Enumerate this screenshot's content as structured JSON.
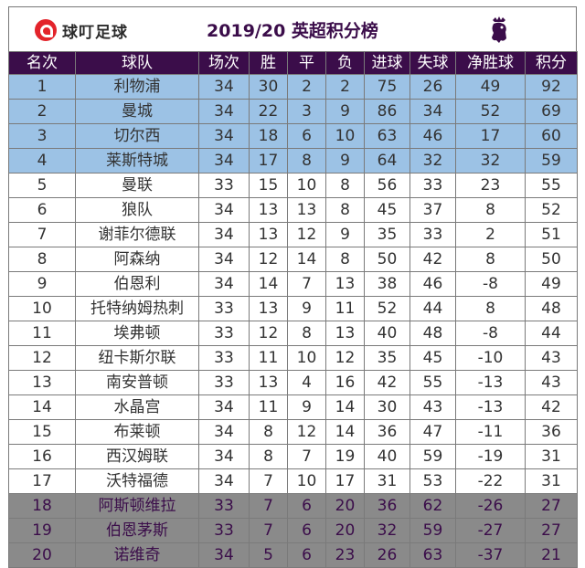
{
  "brand": {
    "name": "球叮足球"
  },
  "title": "2019/20 英超积分榜",
  "columns": [
    "名次",
    "球队",
    "场次",
    "胜",
    "平",
    "负",
    "进球",
    "失球",
    "净胜球",
    "积分"
  ],
  "zone_colors": {
    "ucl": "#9cc2e5",
    "mid": "#ffffff",
    "rel": "#8a8a8a",
    "header": "#3b0d4a"
  },
  "rows": [
    {
      "rank": "1",
      "team": "利物浦",
      "played": "34",
      "won": "30",
      "drawn": "2",
      "lost": "2",
      "gf": "75",
      "ga": "26",
      "gd": "49",
      "pts": "92",
      "zone": "ucl"
    },
    {
      "rank": "2",
      "team": "曼城",
      "played": "34",
      "won": "22",
      "drawn": "3",
      "lost": "9",
      "gf": "86",
      "ga": "34",
      "gd": "52",
      "pts": "69",
      "zone": "ucl"
    },
    {
      "rank": "3",
      "team": "切尔西",
      "played": "34",
      "won": "18",
      "drawn": "6",
      "lost": "10",
      "gf": "63",
      "ga": "46",
      "gd": "17",
      "pts": "60",
      "zone": "ucl"
    },
    {
      "rank": "4",
      "team": "莱斯特城",
      "played": "34",
      "won": "17",
      "drawn": "8",
      "lost": "9",
      "gf": "64",
      "ga": "32",
      "gd": "32",
      "pts": "59",
      "zone": "ucl"
    },
    {
      "rank": "5",
      "team": "曼联",
      "played": "33",
      "won": "15",
      "drawn": "10",
      "lost": "8",
      "gf": "56",
      "ga": "33",
      "gd": "23",
      "pts": "55",
      "zone": "mid"
    },
    {
      "rank": "6",
      "team": "狼队",
      "played": "34",
      "won": "13",
      "drawn": "13",
      "lost": "8",
      "gf": "45",
      "ga": "37",
      "gd": "8",
      "pts": "52",
      "zone": "mid"
    },
    {
      "rank": "7",
      "team": "谢菲尔德联",
      "played": "34",
      "won": "13",
      "drawn": "12",
      "lost": "9",
      "gf": "35",
      "ga": "33",
      "gd": "2",
      "pts": "51",
      "zone": "mid"
    },
    {
      "rank": "8",
      "team": "阿森纳",
      "played": "34",
      "won": "12",
      "drawn": "14",
      "lost": "8",
      "gf": "50",
      "ga": "42",
      "gd": "8",
      "pts": "50",
      "zone": "mid"
    },
    {
      "rank": "9",
      "team": "伯恩利",
      "played": "34",
      "won": "14",
      "drawn": "7",
      "lost": "13",
      "gf": "38",
      "ga": "46",
      "gd": "-8",
      "pts": "49",
      "zone": "mid"
    },
    {
      "rank": "10",
      "team": "托特纳姆热刺",
      "played": "33",
      "won": "13",
      "drawn": "9",
      "lost": "11",
      "gf": "52",
      "ga": "44",
      "gd": "8",
      "pts": "48",
      "zone": "mid"
    },
    {
      "rank": "11",
      "team": "埃弗顿",
      "played": "33",
      "won": "12",
      "drawn": "8",
      "lost": "13",
      "gf": "40",
      "ga": "48",
      "gd": "-8",
      "pts": "44",
      "zone": "mid"
    },
    {
      "rank": "12",
      "team": "纽卡斯尔联",
      "played": "33",
      "won": "11",
      "drawn": "10",
      "lost": "12",
      "gf": "35",
      "ga": "45",
      "gd": "-10",
      "pts": "43",
      "zone": "mid"
    },
    {
      "rank": "13",
      "team": "南安普顿",
      "played": "33",
      "won": "13",
      "drawn": "4",
      "lost": "16",
      "gf": "42",
      "ga": "55",
      "gd": "-13",
      "pts": "43",
      "zone": "mid"
    },
    {
      "rank": "14",
      "team": "水晶宫",
      "played": "34",
      "won": "11",
      "drawn": "9",
      "lost": "14",
      "gf": "30",
      "ga": "43",
      "gd": "-13",
      "pts": "42",
      "zone": "mid"
    },
    {
      "rank": "15",
      "team": "布莱顿",
      "played": "34",
      "won": "8",
      "drawn": "12",
      "lost": "14",
      "gf": "36",
      "ga": "47",
      "gd": "-11",
      "pts": "36",
      "zone": "mid"
    },
    {
      "rank": "16",
      "team": "西汉姆联",
      "played": "34",
      "won": "8",
      "drawn": "7",
      "lost": "19",
      "gf": "40",
      "ga": "59",
      "gd": "-19",
      "pts": "31",
      "zone": "mid"
    },
    {
      "rank": "17",
      "team": "沃特福德",
      "played": "34",
      "won": "7",
      "drawn": "10",
      "lost": "17",
      "gf": "31",
      "ga": "53",
      "gd": "-22",
      "pts": "31",
      "zone": "mid"
    },
    {
      "rank": "18",
      "team": "阿斯顿维拉",
      "played": "33",
      "won": "7",
      "drawn": "6",
      "lost": "20",
      "gf": "36",
      "ga": "62",
      "gd": "-26",
      "pts": "27",
      "zone": "rel"
    },
    {
      "rank": "19",
      "team": "伯恩茅斯",
      "played": "33",
      "won": "7",
      "drawn": "6",
      "lost": "20",
      "gf": "32",
      "ga": "59",
      "gd": "-27",
      "pts": "27",
      "zone": "rel"
    },
    {
      "rank": "20",
      "team": "诺维奇",
      "played": "34",
      "won": "5",
      "drawn": "6",
      "lost": "23",
      "gf": "26",
      "ga": "63",
      "gd": "-37",
      "pts": "21",
      "zone": "rel"
    }
  ]
}
